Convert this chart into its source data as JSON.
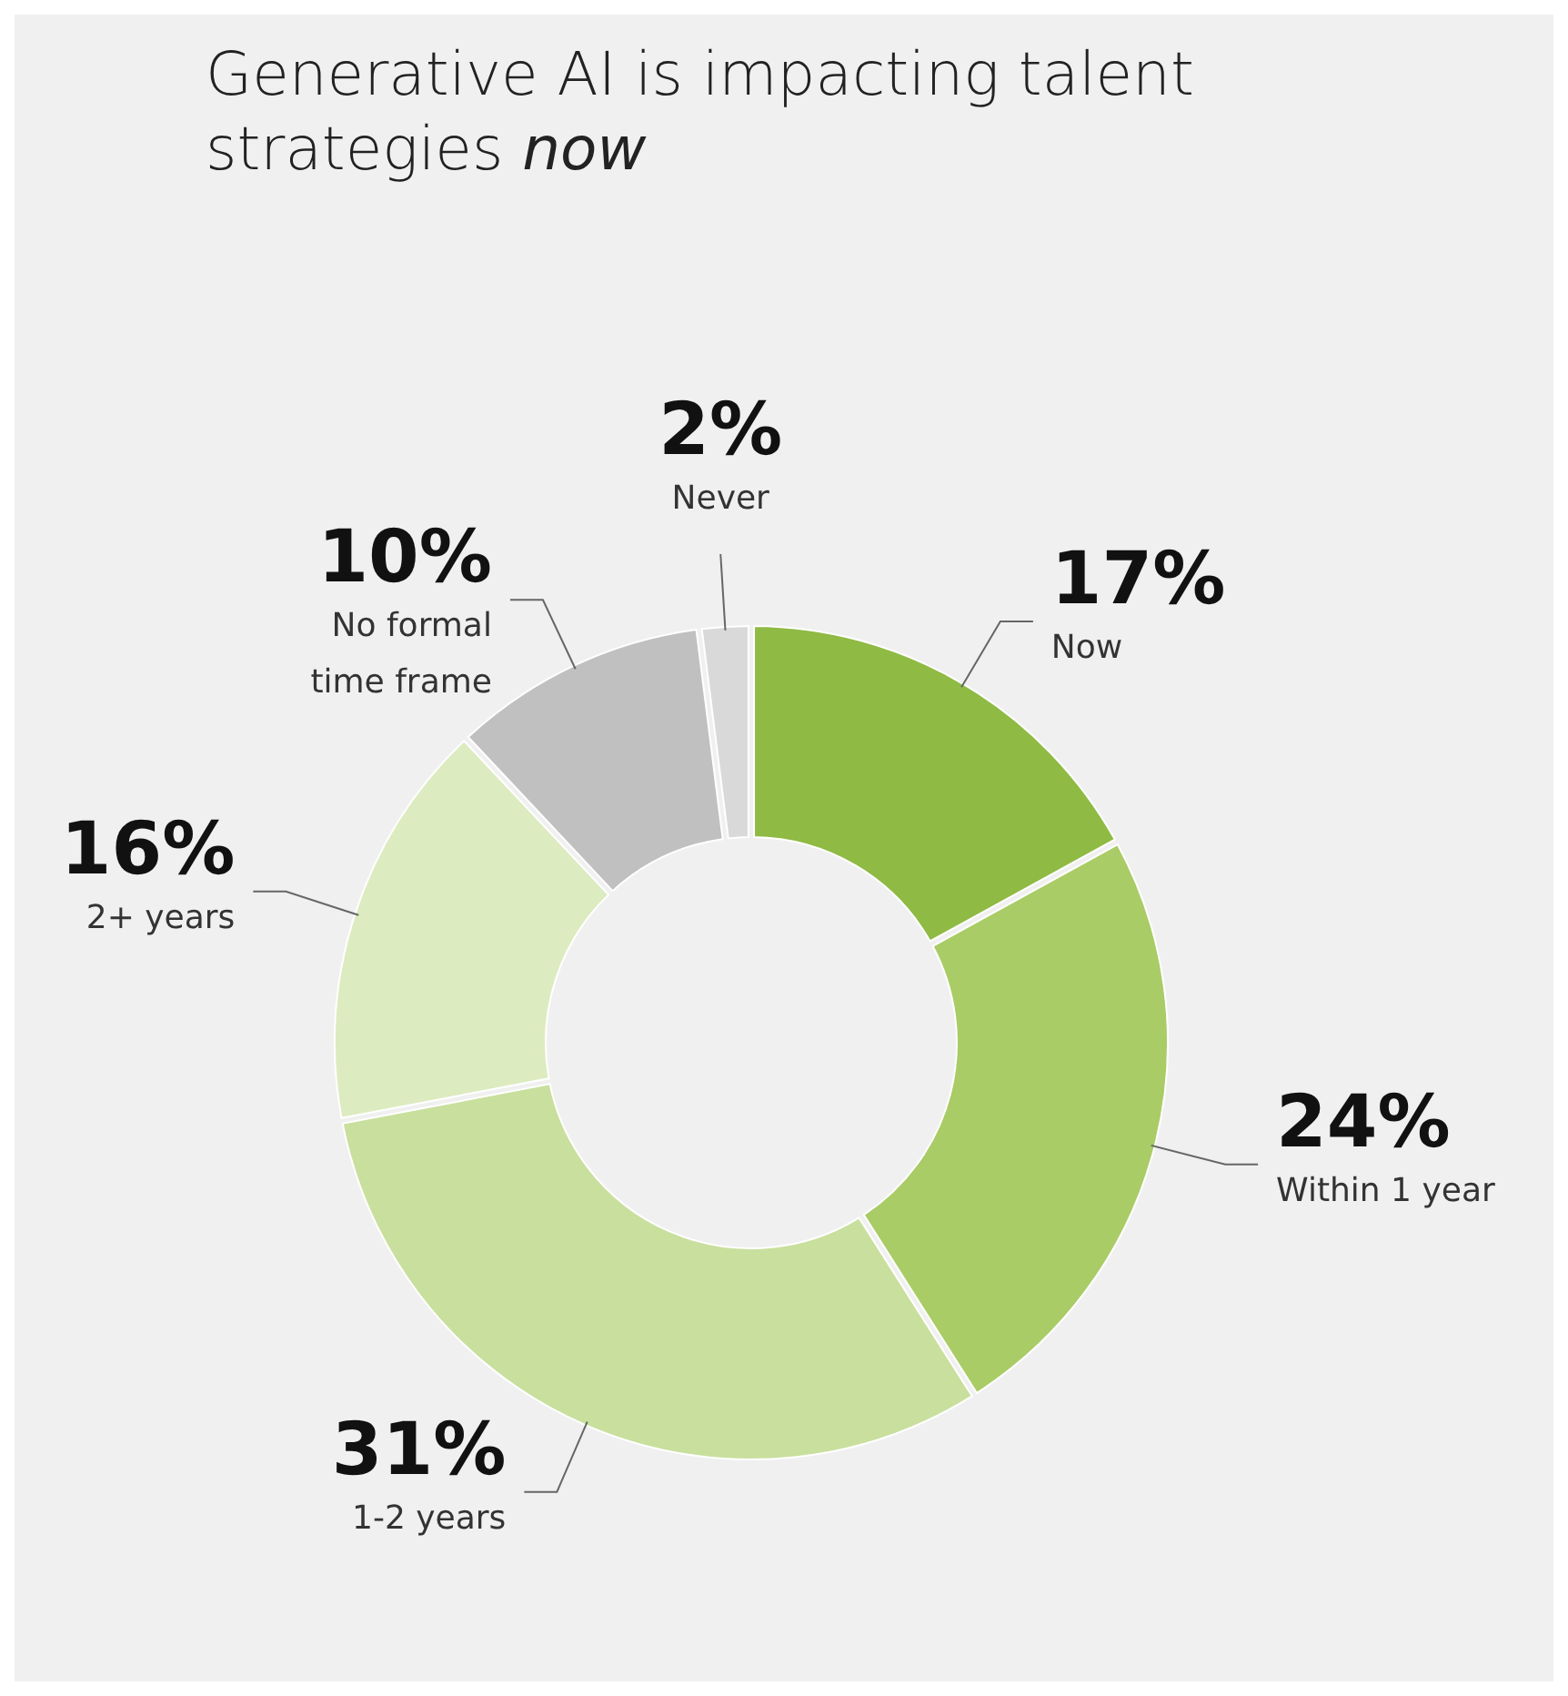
{
  "chart_data": {
    "type": "donut",
    "title": "Generative AI is impacting talent strategies now",
    "categories": [
      "Now",
      "Within 1 year",
      "1-2 years",
      "2+ years",
      "No formal time frame",
      "Never"
    ],
    "values": [
      17,
      24,
      31,
      16,
      10,
      2
    ],
    "colors": [
      "#8fba44",
      "#a9cc66",
      "#c9df9e",
      "#ddebc0",
      "#c0c0c0",
      "#d9d9d9"
    ],
    "value_labels": [
      "17%",
      "24%",
      "31%",
      "16%",
      "10%",
      "2%"
    ]
  }
}
